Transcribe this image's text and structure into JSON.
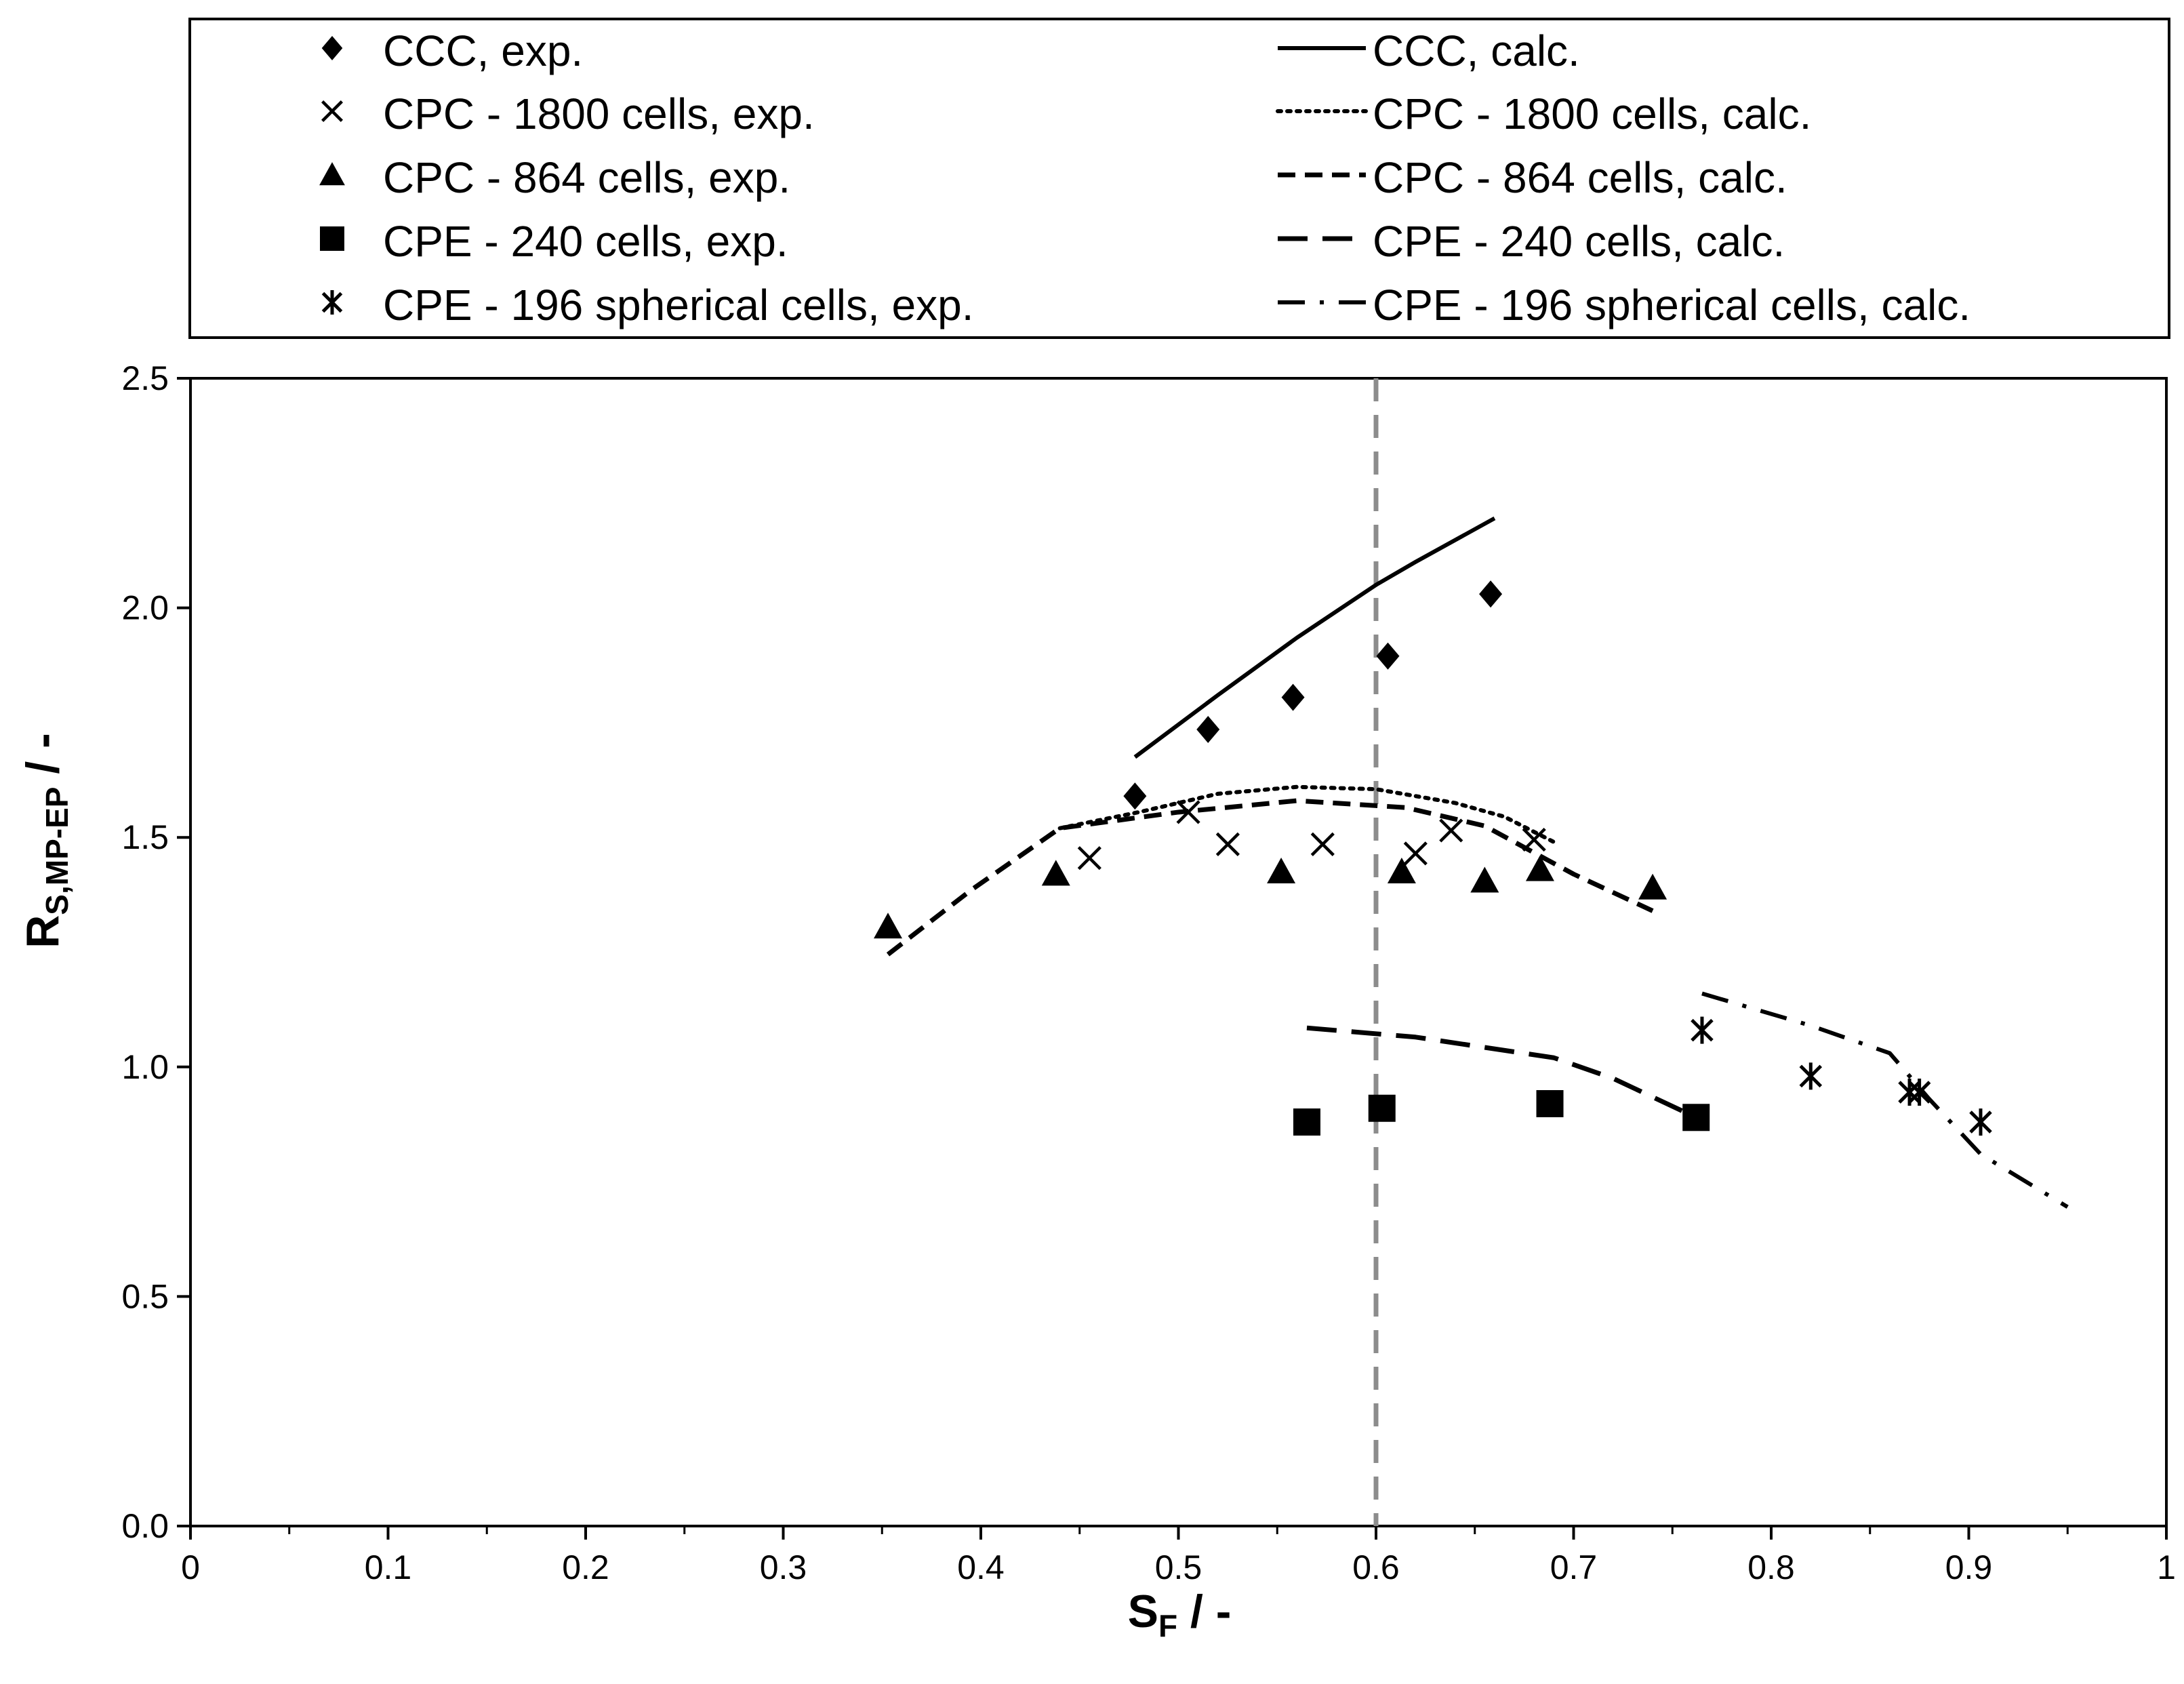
{
  "chart_data": {
    "type": "scatter",
    "title": "",
    "xlabel": {
      "main": "S",
      "sub": "F",
      "suffix": " / -"
    },
    "ylabel": {
      "main": "R",
      "sub": "S,MP-EP",
      "suffix": " / -"
    },
    "xlim": [
      0,
      1
    ],
    "ylim": [
      0,
      2.5
    ],
    "x_ticks": [
      0,
      0.1,
      0.2,
      0.3,
      0.4,
      0.5,
      0.6,
      0.7,
      0.8,
      0.9,
      1
    ],
    "x_tick_labels": [
      "0",
      "0.1",
      "0.2",
      "0.3",
      "0.4",
      "0.5",
      "0.6",
      "0.7",
      "0.8",
      "0.9",
      "1"
    ],
    "y_ticks": [
      0,
      0.5,
      1,
      1.5,
      2,
      2.5
    ],
    "y_tick_labels": [
      "0.0",
      "0.5",
      "1.0",
      "1.5",
      "2.0",
      "2.5"
    ],
    "grid": false,
    "legend_position": "top",
    "reference_line": {
      "x": 0.6,
      "style": "dashed",
      "color": "#8c8c8c"
    },
    "series_exp": [
      {
        "name": "CCC, exp.",
        "marker": "diamond",
        "points": [
          [
            0.478,
            1.59
          ],
          [
            0.515,
            1.735
          ],
          [
            0.558,
            1.805
          ],
          [
            0.606,
            1.895
          ],
          [
            0.658,
            2.03
          ]
        ]
      },
      {
        "name": "CPC - 1800 cells, exp.",
        "marker": "x",
        "points": [
          [
            0.455,
            1.455
          ],
          [
            0.505,
            1.555
          ],
          [
            0.525,
            1.485
          ],
          [
            0.573,
            1.485
          ],
          [
            0.62,
            1.465
          ],
          [
            0.638,
            1.515
          ],
          [
            0.68,
            1.495
          ]
        ]
      },
      {
        "name": "CPC - 864 cells, exp.",
        "marker": "triangle",
        "points": [
          [
            0.353,
            1.305
          ],
          [
            0.438,
            1.42
          ],
          [
            0.552,
            1.425
          ],
          [
            0.613,
            1.425
          ],
          [
            0.655,
            1.405
          ],
          [
            0.683,
            1.43
          ],
          [
            0.74,
            1.39
          ]
        ]
      },
      {
        "name": "CPE - 240 cells, exp.",
        "marker": "square",
        "points": [
          [
            0.565,
            0.88
          ],
          [
            0.603,
            0.91
          ],
          [
            0.688,
            0.92
          ],
          [
            0.762,
            0.89
          ]
        ]
      },
      {
        "name": "CPE - 196 spherical cells, exp.",
        "marker": "asterisk",
        "points": [
          [
            0.765,
            1.08
          ],
          [
            0.82,
            0.98
          ],
          [
            0.87,
            0.945
          ],
          [
            0.875,
            0.945
          ],
          [
            0.906,
            0.88
          ]
        ]
      }
    ],
    "series_calc": [
      {
        "name": "CCC, calc.",
        "line": "solid",
        "points": [
          [
            0.478,
            1.675
          ],
          [
            0.52,
            1.81
          ],
          [
            0.56,
            1.935
          ],
          [
            0.6,
            2.05
          ],
          [
            0.62,
            2.1
          ],
          [
            0.66,
            2.195
          ]
        ]
      },
      {
        "name": "CPC - 1800 cells, calc.",
        "line": "dotted",
        "points": [
          [
            0.44,
            1.52
          ],
          [
            0.48,
            1.555
          ],
          [
            0.52,
            1.595
          ],
          [
            0.56,
            1.61
          ],
          [
            0.6,
            1.605
          ],
          [
            0.64,
            1.575
          ],
          [
            0.665,
            1.545
          ],
          [
            0.69,
            1.49
          ]
        ]
      },
      {
        "name": "CPC - 864 cells, calc.",
        "line": "dashed",
        "points": [
          [
            0.353,
            1.245
          ],
          [
            0.395,
            1.385
          ],
          [
            0.44,
            1.52
          ],
          [
            0.5,
            1.555
          ],
          [
            0.56,
            1.58
          ],
          [
            0.615,
            1.565
          ],
          [
            0.655,
            1.525
          ],
          [
            0.7,
            1.42
          ],
          [
            0.74,
            1.34
          ]
        ]
      },
      {
        "name": "CPE - 240 cells, calc.",
        "line": "longdash",
        "points": [
          [
            0.565,
            1.085
          ],
          [
            0.62,
            1.065
          ],
          [
            0.69,
            1.02
          ],
          [
            0.72,
            0.975
          ],
          [
            0.762,
            0.89
          ]
        ]
      },
      {
        "name": "CPE - 196 spherical cells, calc.",
        "line": "dashdot",
        "points": [
          [
            0.765,
            1.16
          ],
          [
            0.82,
            1.09
          ],
          [
            0.86,
            1.03
          ],
          [
            0.88,
            0.93
          ],
          [
            0.906,
            0.81
          ],
          [
            0.95,
            0.695
          ]
        ]
      }
    ]
  }
}
